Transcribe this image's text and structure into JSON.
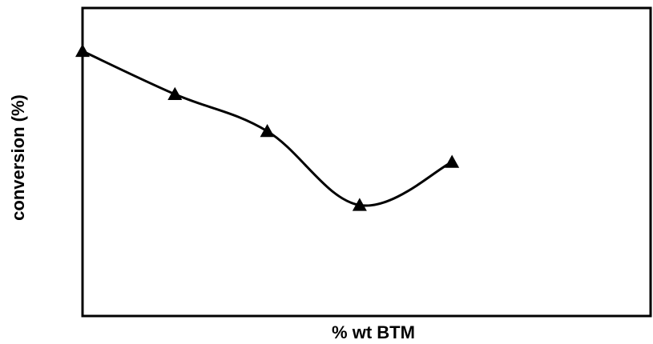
{
  "chart_data": {
    "type": "line",
    "title": "",
    "xlabel": "% wt BTM",
    "ylabel": "conversion (%)",
    "x": [
      1,
      2,
      3,
      4,
      5
    ],
    "series": [
      {
        "values": [
          86,
          72,
          60,
          36,
          50
        ],
        "marker": "triangle",
        "color": "#000000",
        "smooth": true
      }
    ],
    "xlim": [
      1,
      6
    ],
    "ylim": [
      0,
      100
    ],
    "grid": false,
    "legend": "none"
  }
}
